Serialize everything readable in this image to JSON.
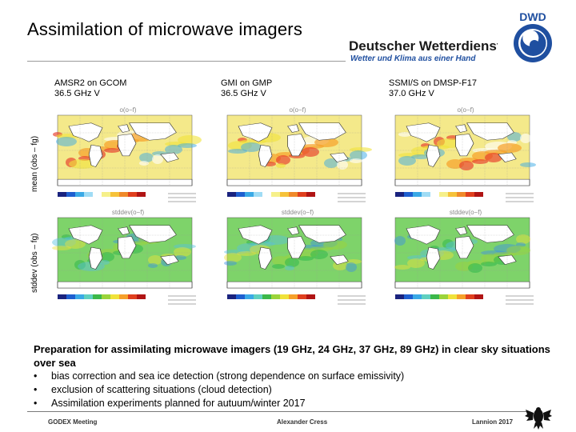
{
  "title": "Assimilation of microwave imagers",
  "org": {
    "name": "Deutscher Wetterdienst",
    "slogan": "Wetter und Klima aus einer Hand",
    "logo_text": "DWD",
    "colors": {
      "blue": "#1f4fa0",
      "dark": "#1a1a1a"
    }
  },
  "columns": [
    {
      "line1": "AMSR2 on GCOM",
      "line2": "36.5 GHz V"
    },
    {
      "line1": "GMI on GMP",
      "line2": "36.5 GHz V"
    },
    {
      "line1": "SSMI/S on DMSP-F17",
      "line2": "37.0 GHz V"
    }
  ],
  "rows": [
    {
      "label": "mean (obs – fg)",
      "map_title": "o(o−f)"
    },
    {
      "label": "stddev (obs – fg)",
      "map_title": "stddev(o−f)"
    }
  ],
  "body": {
    "lead": "Preparation for assimilating microwave imagers (19 GHz, 24 GHz, 37 GHz, 89 GHz) in clear sky situations over sea",
    "bullets": [
      "bias correction and sea ice detection (strong dependence on surface emissivity)",
      "exclusion of scattering situations (cloud detection)",
      "Assimilation experiments planned for autuum/winter 2017"
    ]
  },
  "footer": {
    "left": "GODEX Meeting",
    "center": "Alexander Cress",
    "right": "Lannion 2017"
  }
}
